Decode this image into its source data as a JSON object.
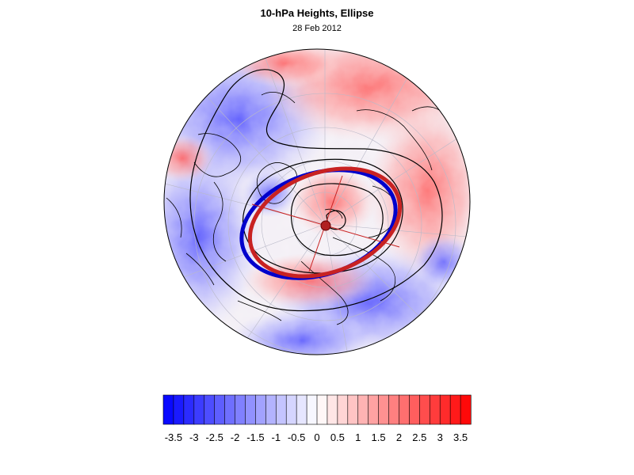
{
  "figure": {
    "title": "10-hPa Heights, Ellipse",
    "date": "28 Feb 2012"
  },
  "colorbar": {
    "min": -3.75,
    "max": 3.75,
    "step": 0.25,
    "tick_labels": [
      "-3.5",
      "-3",
      "-2.5",
      "-2",
      "-1.5",
      "-1",
      "-0.5",
      "0",
      "0.5",
      "1",
      "1.5",
      "2",
      "2.5",
      "3",
      "3.5"
    ],
    "low_color": "#0000ff",
    "mid_color": "#ffffff",
    "high_color": "#ff0000"
  },
  "map": {
    "projection": "orthographic, north polar",
    "field": "10-hPa height anomaly (shaded)",
    "contour_color": "#000000",
    "ellipse_colors": {
      "observed": "#0000cc",
      "fitted": "#cc2222"
    }
  }
}
